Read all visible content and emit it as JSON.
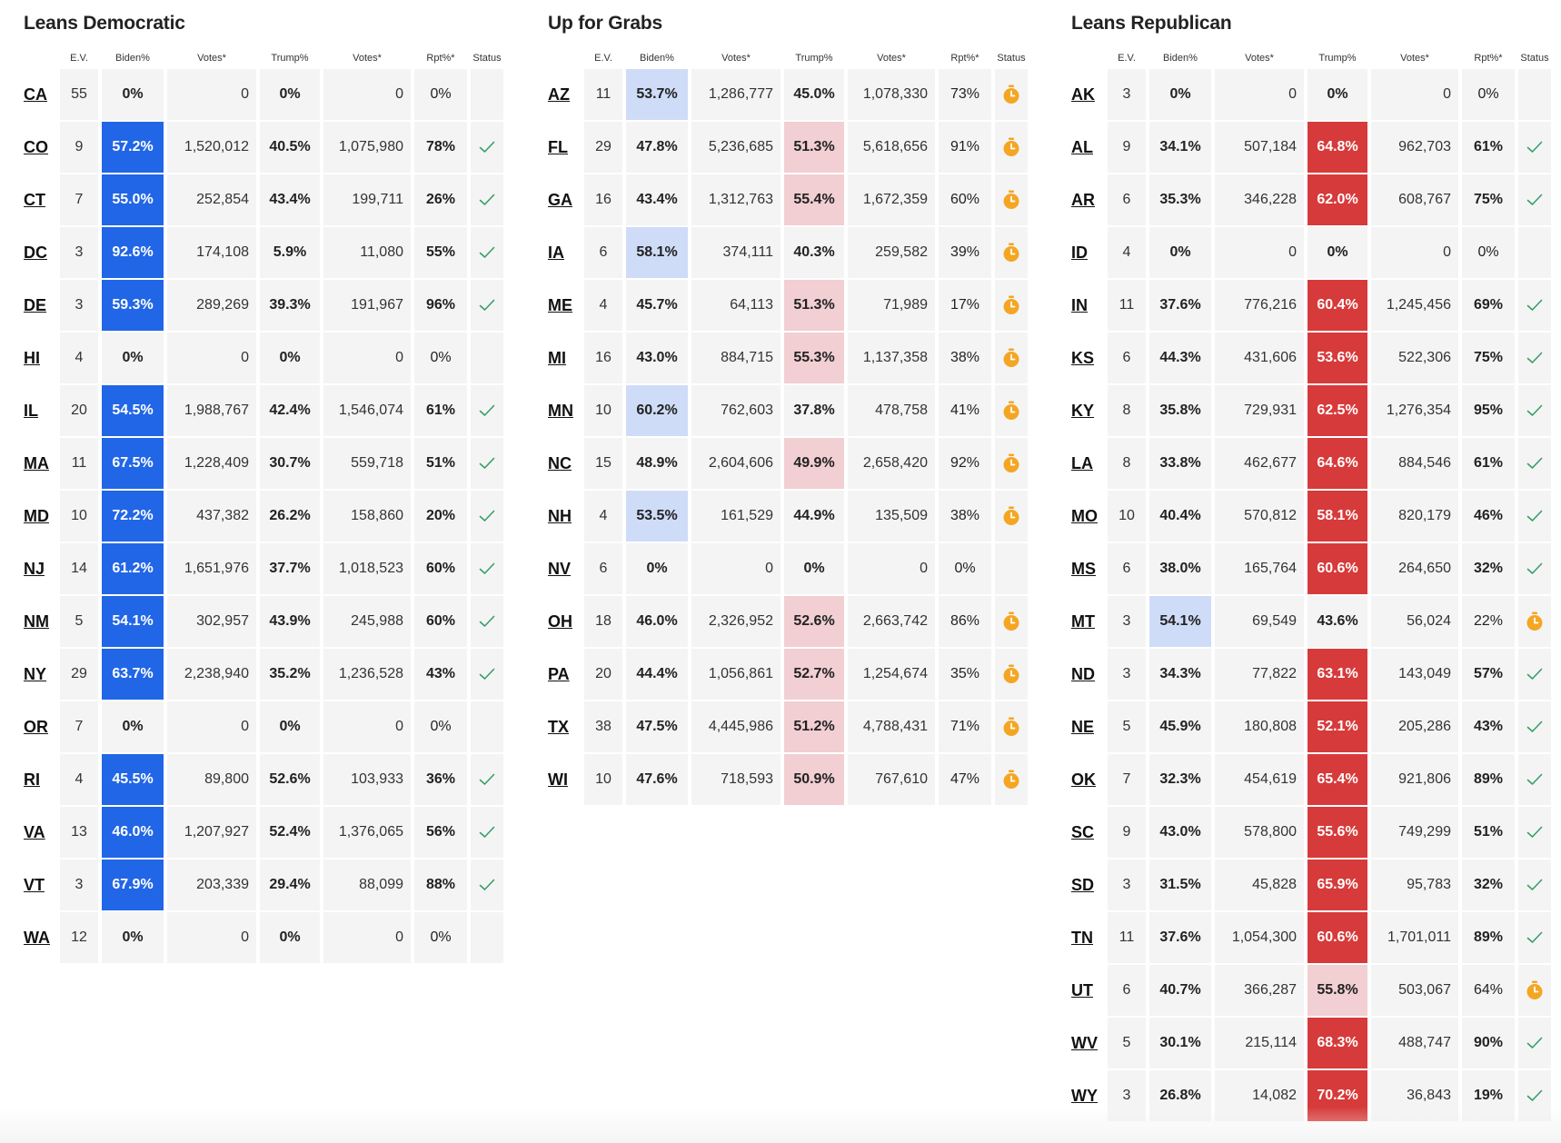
{
  "columns": [
    "E.V.",
    "Biden%",
    "Votes*",
    "Trump%",
    "Votes*",
    "Rpt%*",
    "Status"
  ],
  "colors": {
    "strong_blue": "#2166e6",
    "light_blue": "#cfdcf7",
    "strong_red": "#d73a3a",
    "light_red": "#f1cfd2",
    "cell_bg": "#f4f4f5",
    "check_green": "#3a9e68",
    "clock_orange": "#f4a623"
  },
  "panels": [
    {
      "title": "Leans Democratic",
      "rows": [
        {
          "state": "CA",
          "ev": "55",
          "biden": "0%",
          "bvotes": "0",
          "trump": "0%",
          "tvotes": "0",
          "rpt": "0%",
          "status": "none",
          "shade": "none"
        },
        {
          "state": "CO",
          "ev": "9",
          "biden": "57.2%",
          "bvotes": "1,520,012",
          "trump": "40.5%",
          "tvotes": "1,075,980",
          "rpt": "78%",
          "status": "called",
          "shade": "strong-biden"
        },
        {
          "state": "CT",
          "ev": "7",
          "biden": "55.0%",
          "bvotes": "252,854",
          "trump": "43.4%",
          "tvotes": "199,711",
          "rpt": "26%",
          "status": "called",
          "shade": "strong-biden"
        },
        {
          "state": "DC",
          "ev": "3",
          "biden": "92.6%",
          "bvotes": "174,108",
          "trump": "5.9%",
          "tvotes": "11,080",
          "rpt": "55%",
          "status": "called",
          "shade": "strong-biden"
        },
        {
          "state": "DE",
          "ev": "3",
          "biden": "59.3%",
          "bvotes": "289,269",
          "trump": "39.3%",
          "tvotes": "191,967",
          "rpt": "96%",
          "status": "called",
          "shade": "strong-biden"
        },
        {
          "state": "HI",
          "ev": "4",
          "biden": "0%",
          "bvotes": "0",
          "trump": "0%",
          "tvotes": "0",
          "rpt": "0%",
          "status": "none",
          "shade": "none"
        },
        {
          "state": "IL",
          "ev": "20",
          "biden": "54.5%",
          "bvotes": "1,988,767",
          "trump": "42.4%",
          "tvotes": "1,546,074",
          "rpt": "61%",
          "status": "called",
          "shade": "strong-biden"
        },
        {
          "state": "MA",
          "ev": "11",
          "biden": "67.5%",
          "bvotes": "1,228,409",
          "trump": "30.7%",
          "tvotes": "559,718",
          "rpt": "51%",
          "status": "called",
          "shade": "strong-biden"
        },
        {
          "state": "MD",
          "ev": "10",
          "biden": "72.2%",
          "bvotes": "437,382",
          "trump": "26.2%",
          "tvotes": "158,860",
          "rpt": "20%",
          "status": "called",
          "shade": "strong-biden"
        },
        {
          "state": "NJ",
          "ev": "14",
          "biden": "61.2%",
          "bvotes": "1,651,976",
          "trump": "37.7%",
          "tvotes": "1,018,523",
          "rpt": "60%",
          "status": "called",
          "shade": "strong-biden"
        },
        {
          "state": "NM",
          "ev": "5",
          "biden": "54.1%",
          "bvotes": "302,957",
          "trump": "43.9%",
          "tvotes": "245,988",
          "rpt": "60%",
          "status": "called",
          "shade": "strong-biden"
        },
        {
          "state": "NY",
          "ev": "29",
          "biden": "63.7%",
          "bvotes": "2,238,940",
          "trump": "35.2%",
          "tvotes": "1,236,528",
          "rpt": "43%",
          "status": "called",
          "shade": "strong-biden"
        },
        {
          "state": "OR",
          "ev": "7",
          "biden": "0%",
          "bvotes": "0",
          "trump": "0%",
          "tvotes": "0",
          "rpt": "0%",
          "status": "none",
          "shade": "none"
        },
        {
          "state": "RI",
          "ev": "4",
          "biden": "45.5%",
          "bvotes": "89,800",
          "trump": "52.6%",
          "tvotes": "103,933",
          "rpt": "36%",
          "status": "called",
          "shade": "strong-biden"
        },
        {
          "state": "VA",
          "ev": "13",
          "biden": "46.0%",
          "bvotes": "1,207,927",
          "trump": "52.4%",
          "tvotes": "1,376,065",
          "rpt": "56%",
          "status": "called",
          "shade": "strong-biden"
        },
        {
          "state": "VT",
          "ev": "3",
          "biden": "67.9%",
          "bvotes": "203,339",
          "trump": "29.4%",
          "tvotes": "88,099",
          "rpt": "88%",
          "status": "called",
          "shade": "strong-biden"
        },
        {
          "state": "WA",
          "ev": "12",
          "biden": "0%",
          "bvotes": "0",
          "trump": "0%",
          "tvotes": "0",
          "rpt": "0%",
          "status": "none",
          "shade": "none"
        }
      ]
    },
    {
      "title": "Up for Grabs",
      "rows": [
        {
          "state": "AZ",
          "ev": "11",
          "biden": "53.7%",
          "bvotes": "1,286,777",
          "trump": "45.0%",
          "tvotes": "1,078,330",
          "rpt": "73%",
          "status": "pending",
          "shade": "light-biden"
        },
        {
          "state": "FL",
          "ev": "29",
          "biden": "47.8%",
          "bvotes": "5,236,685",
          "trump": "51.3%",
          "tvotes": "5,618,656",
          "rpt": "91%",
          "status": "pending",
          "shade": "light-trump"
        },
        {
          "state": "GA",
          "ev": "16",
          "biden": "43.4%",
          "bvotes": "1,312,763",
          "trump": "55.4%",
          "tvotes": "1,672,359",
          "rpt": "60%",
          "status": "pending",
          "shade": "light-trump"
        },
        {
          "state": "IA",
          "ev": "6",
          "biden": "58.1%",
          "bvotes": "374,111",
          "trump": "40.3%",
          "tvotes": "259,582",
          "rpt": "39%",
          "status": "pending",
          "shade": "light-biden"
        },
        {
          "state": "ME",
          "ev": "4",
          "biden": "45.7%",
          "bvotes": "64,113",
          "trump": "51.3%",
          "tvotes": "71,989",
          "rpt": "17%",
          "status": "pending",
          "shade": "light-trump"
        },
        {
          "state": "MI",
          "ev": "16",
          "biden": "43.0%",
          "bvotes": "884,715",
          "trump": "55.3%",
          "tvotes": "1,137,358",
          "rpt": "38%",
          "status": "pending",
          "shade": "light-trump"
        },
        {
          "state": "MN",
          "ev": "10",
          "biden": "60.2%",
          "bvotes": "762,603",
          "trump": "37.8%",
          "tvotes": "478,758",
          "rpt": "41%",
          "status": "pending",
          "shade": "light-biden"
        },
        {
          "state": "NC",
          "ev": "15",
          "biden": "48.9%",
          "bvotes": "2,604,606",
          "trump": "49.9%",
          "tvotes": "2,658,420",
          "rpt": "92%",
          "status": "pending",
          "shade": "light-trump"
        },
        {
          "state": "NH",
          "ev": "4",
          "biden": "53.5%",
          "bvotes": "161,529",
          "trump": "44.9%",
          "tvotes": "135,509",
          "rpt": "38%",
          "status": "pending",
          "shade": "light-biden"
        },
        {
          "state": "NV",
          "ev": "6",
          "biden": "0%",
          "bvotes": "0",
          "trump": "0%",
          "tvotes": "0",
          "rpt": "0%",
          "status": "none",
          "shade": "none"
        },
        {
          "state": "OH",
          "ev": "18",
          "biden": "46.0%",
          "bvotes": "2,326,952",
          "trump": "52.6%",
          "tvotes": "2,663,742",
          "rpt": "86%",
          "status": "pending",
          "shade": "light-trump"
        },
        {
          "state": "PA",
          "ev": "20",
          "biden": "44.4%",
          "bvotes": "1,056,861",
          "trump": "52.7%",
          "tvotes": "1,254,674",
          "rpt": "35%",
          "status": "pending",
          "shade": "light-trump"
        },
        {
          "state": "TX",
          "ev": "38",
          "biden": "47.5%",
          "bvotes": "4,445,986",
          "trump": "51.2%",
          "tvotes": "4,788,431",
          "rpt": "71%",
          "status": "pending",
          "shade": "light-trump"
        },
        {
          "state": "WI",
          "ev": "10",
          "biden": "47.6%",
          "bvotes": "718,593",
          "trump": "50.9%",
          "tvotes": "767,610",
          "rpt": "47%",
          "status": "pending",
          "shade": "light-trump"
        }
      ]
    },
    {
      "title": "Leans Republican",
      "rows": [
        {
          "state": "AK",
          "ev": "3",
          "biden": "0%",
          "bvotes": "0",
          "trump": "0%",
          "tvotes": "0",
          "rpt": "0%",
          "status": "none",
          "shade": "none"
        },
        {
          "state": "AL",
          "ev": "9",
          "biden": "34.1%",
          "bvotes": "507,184",
          "trump": "64.8%",
          "tvotes": "962,703",
          "rpt": "61%",
          "status": "called",
          "shade": "strong-trump"
        },
        {
          "state": "AR",
          "ev": "6",
          "biden": "35.3%",
          "bvotes": "346,228",
          "trump": "62.0%",
          "tvotes": "608,767",
          "rpt": "75%",
          "status": "called",
          "shade": "strong-trump"
        },
        {
          "state": "ID",
          "ev": "4",
          "biden": "0%",
          "bvotes": "0",
          "trump": "0%",
          "tvotes": "0",
          "rpt": "0%",
          "status": "none",
          "shade": "none"
        },
        {
          "state": "IN",
          "ev": "11",
          "biden": "37.6%",
          "bvotes": "776,216",
          "trump": "60.4%",
          "tvotes": "1,245,456",
          "rpt": "69%",
          "status": "called",
          "shade": "strong-trump"
        },
        {
          "state": "KS",
          "ev": "6",
          "biden": "44.3%",
          "bvotes": "431,606",
          "trump": "53.6%",
          "tvotes": "522,306",
          "rpt": "75%",
          "status": "called",
          "shade": "strong-trump"
        },
        {
          "state": "KY",
          "ev": "8",
          "biden": "35.8%",
          "bvotes": "729,931",
          "trump": "62.5%",
          "tvotes": "1,276,354",
          "rpt": "95%",
          "status": "called",
          "shade": "strong-trump"
        },
        {
          "state": "LA",
          "ev": "8",
          "biden": "33.8%",
          "bvotes": "462,677",
          "trump": "64.6%",
          "tvotes": "884,546",
          "rpt": "61%",
          "status": "called",
          "shade": "strong-trump"
        },
        {
          "state": "MO",
          "ev": "10",
          "biden": "40.4%",
          "bvotes": "570,812",
          "trump": "58.1%",
          "tvotes": "820,179",
          "rpt": "46%",
          "status": "called",
          "shade": "strong-trump"
        },
        {
          "state": "MS",
          "ev": "6",
          "biden": "38.0%",
          "bvotes": "165,764",
          "trump": "60.6%",
          "tvotes": "264,650",
          "rpt": "32%",
          "status": "called",
          "shade": "strong-trump"
        },
        {
          "state": "MT",
          "ev": "3",
          "biden": "54.1%",
          "bvotes": "69,549",
          "trump": "43.6%",
          "tvotes": "56,024",
          "rpt": "22%",
          "status": "pending",
          "shade": "light-biden"
        },
        {
          "state": "ND",
          "ev": "3",
          "biden": "34.3%",
          "bvotes": "77,822",
          "trump": "63.1%",
          "tvotes": "143,049",
          "rpt": "57%",
          "status": "called",
          "shade": "strong-trump"
        },
        {
          "state": "NE",
          "ev": "5",
          "biden": "45.9%",
          "bvotes": "180,808",
          "trump": "52.1%",
          "tvotes": "205,286",
          "rpt": "43%",
          "status": "called",
          "shade": "strong-trump"
        },
        {
          "state": "OK",
          "ev": "7",
          "biden": "32.3%",
          "bvotes": "454,619",
          "trump": "65.4%",
          "tvotes": "921,806",
          "rpt": "89%",
          "status": "called",
          "shade": "strong-trump"
        },
        {
          "state": "SC",
          "ev": "9",
          "biden": "43.0%",
          "bvotes": "578,800",
          "trump": "55.6%",
          "tvotes": "749,299",
          "rpt": "51%",
          "status": "called",
          "shade": "strong-trump"
        },
        {
          "state": "SD",
          "ev": "3",
          "biden": "31.5%",
          "bvotes": "45,828",
          "trump": "65.9%",
          "tvotes": "95,783",
          "rpt": "32%",
          "status": "called",
          "shade": "strong-trump"
        },
        {
          "state": "TN",
          "ev": "11",
          "biden": "37.6%",
          "bvotes": "1,054,300",
          "trump": "60.6%",
          "tvotes": "1,701,011",
          "rpt": "89%",
          "status": "called",
          "shade": "strong-trump"
        },
        {
          "state": "UT",
          "ev": "6",
          "biden": "40.7%",
          "bvotes": "366,287",
          "trump": "55.8%",
          "tvotes": "503,067",
          "rpt": "64%",
          "status": "pending",
          "shade": "light-trump"
        },
        {
          "state": "WV",
          "ev": "5",
          "biden": "30.1%",
          "bvotes": "215,114",
          "trump": "68.3%",
          "tvotes": "488,747",
          "rpt": "90%",
          "status": "called",
          "shade": "strong-trump"
        },
        {
          "state": "WY",
          "ev": "3",
          "biden": "26.8%",
          "bvotes": "14,082",
          "trump": "70.2%",
          "tvotes": "36,843",
          "rpt": "19%",
          "status": "called",
          "shade": "strong-trump"
        }
      ]
    }
  ]
}
